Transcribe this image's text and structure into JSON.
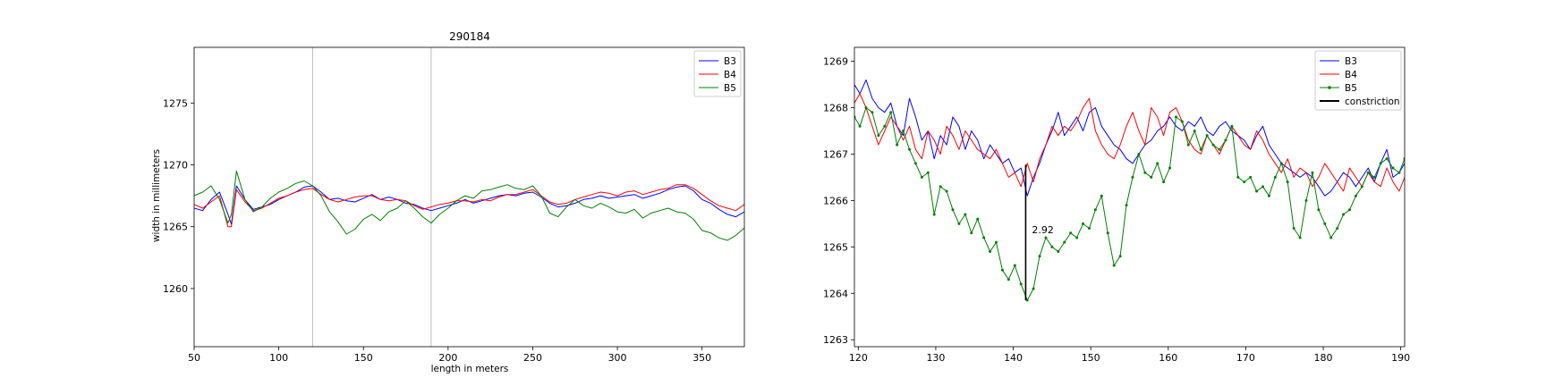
{
  "chart_data": [
    {
      "type": "line",
      "title": "290184",
      "xlabel": "length in meters",
      "ylabel": "width in millimeters",
      "xlim": [
        50,
        375
      ],
      "ylim": [
        1255.3,
        1279.5
      ],
      "xticks": [
        50,
        100,
        150,
        200,
        250,
        300,
        350
      ],
      "yticks": [
        1260,
        1265,
        1270,
        1275
      ],
      "vlines": [
        120,
        190
      ],
      "vline_color": "#bbbbbb",
      "grid": false,
      "legend": "top-right",
      "series": [
        {
          "name": "B3",
          "color": "#0000ff",
          "x": [
            50,
            55,
            60,
            65,
            70,
            72,
            75,
            80,
            85,
            90,
            95,
            100,
            105,
            110,
            115,
            120,
            125,
            130,
            135,
            140,
            145,
            150,
            155,
            160,
            165,
            170,
            175,
            180,
            185,
            190,
            195,
            200,
            205,
            210,
            215,
            220,
            225,
            230,
            235,
            240,
            245,
            250,
            255,
            260,
            265,
            270,
            275,
            280,
            285,
            290,
            295,
            300,
            305,
            310,
            315,
            320,
            325,
            330,
            335,
            340,
            345,
            350,
            355,
            360,
            365,
            370,
            375
          ],
          "y": [
            1266.5,
            1266.3,
            1267.2,
            1267.8,
            1266,
            1265.2,
            1268.3,
            1267.2,
            1266.4,
            1266.6,
            1266.8,
            1267.2,
            1267.5,
            1267.8,
            1268.2,
            1268.3,
            1267.8,
            1267.2,
            1267.3,
            1267.1,
            1267,
            1267.3,
            1267.6,
            1267.2,
            1267.4,
            1267.2,
            1266.9,
            1266.8,
            1266.5,
            1266.3,
            1266.5,
            1266.7,
            1266.9,
            1267.2,
            1266.9,
            1267.1,
            1267.3,
            1267.5,
            1267.6,
            1267.5,
            1267.7,
            1267.8,
            1267.4,
            1266.9,
            1266.6,
            1266.7,
            1266.9,
            1267.2,
            1267.3,
            1267.5,
            1267.3,
            1267.4,
            1267.5,
            1267.6,
            1267.3,
            1267.5,
            1267.7,
            1268,
            1268.2,
            1268.3,
            1267.9,
            1267.2,
            1266.9,
            1266.4,
            1266,
            1265.8,
            1266.2
          ]
        },
        {
          "name": "B4",
          "color": "#ff0000",
          "x": [
            50,
            55,
            60,
            65,
            70,
            72,
            75,
            80,
            85,
            90,
            95,
            100,
            105,
            110,
            115,
            120,
            125,
            130,
            135,
            140,
            145,
            150,
            155,
            160,
            165,
            170,
            175,
            180,
            185,
            190,
            195,
            200,
            205,
            210,
            215,
            220,
            225,
            230,
            235,
            240,
            245,
            250,
            255,
            260,
            265,
            270,
            275,
            280,
            285,
            290,
            295,
            300,
            305,
            310,
            315,
            320,
            325,
            330,
            335,
            340,
            345,
            350,
            355,
            360,
            365,
            370,
            375
          ],
          "y": [
            1266.8,
            1266.5,
            1267,
            1267.5,
            1265,
            1265,
            1268,
            1267,
            1266.3,
            1266.5,
            1266.9,
            1267.3,
            1267.5,
            1267.8,
            1268,
            1268.1,
            1267.6,
            1267.2,
            1267,
            1267.2,
            1267.4,
            1267.5,
            1267.5,
            1267.2,
            1267.1,
            1267.2,
            1267.1,
            1266.7,
            1266.4,
            1266.6,
            1266.8,
            1266.9,
            1267.1,
            1267.1,
            1267,
            1267.2,
            1267.1,
            1267.4,
            1267.6,
            1267.6,
            1267.8,
            1268,
            1267.5,
            1267,
            1266.8,
            1266.9,
            1267.2,
            1267.4,
            1267.6,
            1267.8,
            1267.7,
            1267.5,
            1267.8,
            1267.9,
            1267.6,
            1267.8,
            1268,
            1268.1,
            1268.4,
            1268.4,
            1268.1,
            1267.6,
            1267.1,
            1266.7,
            1266.5,
            1266.3,
            1266.8
          ]
        },
        {
          "name": "B5",
          "color": "#008000",
          "x": [
            50,
            55,
            60,
            65,
            70,
            72,
            75,
            80,
            85,
            90,
            95,
            100,
            105,
            110,
            115,
            120,
            125,
            130,
            135,
            140,
            145,
            150,
            155,
            160,
            165,
            170,
            175,
            180,
            185,
            190,
            195,
            200,
            205,
            210,
            215,
            220,
            225,
            230,
            235,
            240,
            245,
            250,
            255,
            260,
            265,
            270,
            275,
            280,
            285,
            290,
            295,
            300,
            305,
            310,
            315,
            320,
            325,
            330,
            335,
            340,
            345,
            350,
            355,
            360,
            365,
            370,
            375
          ],
          "y": [
            1267.5,
            1267.8,
            1268.3,
            1267.2,
            1265.3,
            1266,
            1269.5,
            1267.2,
            1266.2,
            1266.6,
            1267.3,
            1267.8,
            1268.1,
            1268.5,
            1268.7,
            1268.3,
            1267.5,
            1266.2,
            1265.4,
            1264.4,
            1264.8,
            1265.6,
            1266,
            1265.5,
            1266.2,
            1266.5,
            1267.1,
            1266.5,
            1265.8,
            1265.3,
            1266,
            1266.5,
            1267.1,
            1267.5,
            1267.3,
            1267.9,
            1268,
            1268.2,
            1268.4,
            1268.1,
            1268,
            1268.3,
            1267.5,
            1266.1,
            1265.8,
            1266.6,
            1267.2,
            1266.7,
            1266.5,
            1266.9,
            1266.6,
            1266.2,
            1266.1,
            1266.4,
            1265.7,
            1266.1,
            1266.3,
            1266.5,
            1266.2,
            1266.1,
            1265.6,
            1264.7,
            1264.5,
            1264.1,
            1263.9,
            1264.3,
            1264.9
          ]
        }
      ]
    },
    {
      "type": "line",
      "xlim": [
        119.5,
        190.5
      ],
      "ylim": [
        1262.85,
        1269.3
      ],
      "xticks": [
        120,
        130,
        140,
        150,
        160,
        170,
        180,
        190
      ],
      "yticks": [
        1263,
        1264,
        1265,
        1266,
        1267,
        1268,
        1269
      ],
      "grid": false,
      "legend": "top-right",
      "constriction": {
        "x": 141.6,
        "y_from": 1263.85,
        "y_to": 1266.77
      },
      "annotation": {
        "text": "2.92",
        "x": 142.4,
        "y": 1265.3
      },
      "series": [
        {
          "name": "B3",
          "color": "#0000ff",
          "marker": false,
          "x": [
            119.5,
            120.2,
            121,
            121.8,
            122.6,
            123.4,
            124.2,
            125,
            125.8,
            126.6,
            127.4,
            128.2,
            129,
            129.8,
            130.6,
            131.4,
            132.2,
            133,
            133.8,
            134.6,
            135.4,
            136.2,
            137,
            137.8,
            138.6,
            139.4,
            140.2,
            141,
            141.8,
            142.6,
            143.4,
            144.2,
            145,
            145.8,
            146.6,
            147.4,
            148.2,
            149,
            149.8,
            150.6,
            151.4,
            152.2,
            153,
            153.8,
            154.6,
            155.4,
            156.2,
            157,
            157.8,
            158.6,
            159.4,
            160.2,
            161,
            161.8,
            162.6,
            163.4,
            164.2,
            165,
            165.8,
            166.6,
            167.4,
            168.2,
            169,
            169.8,
            170.6,
            171.4,
            172.2,
            173,
            173.8,
            174.6,
            175.4,
            176.2,
            177,
            177.8,
            178.6,
            179.4,
            180.2,
            181,
            181.8,
            182.6,
            183.4,
            184.2,
            185,
            185.8,
            186.6,
            187.4,
            188.2,
            189,
            189.8,
            190.5
          ],
          "y": [
            1268.5,
            1268.3,
            1268.6,
            1268.2,
            1268,
            1267.9,
            1268.1,
            1267.6,
            1267.4,
            1268.2,
            1267.8,
            1267.3,
            1267.5,
            1266.9,
            1267.4,
            1267.2,
            1267.8,
            1267.6,
            1267.1,
            1267.5,
            1267.3,
            1266.9,
            1267.2,
            1267,
            1266.8,
            1266.9,
            1266.6,
            1266.7,
            1266.1,
            1266.5,
            1266.8,
            1267.2,
            1267.5,
            1267.9,
            1267.4,
            1267.6,
            1267.8,
            1267.5,
            1267.9,
            1268,
            1267.6,
            1267.4,
            1267.2,
            1267.1,
            1266.9,
            1266.8,
            1267,
            1267.2,
            1267.3,
            1267.5,
            1267.6,
            1267.8,
            1267.6,
            1267.5,
            1267.7,
            1267.6,
            1267.8,
            1267.5,
            1267.4,
            1267.6,
            1267.7,
            1267.5,
            1267.4,
            1267.3,
            1267.1,
            1267.4,
            1267.6,
            1267.2,
            1267,
            1266.8,
            1266.7,
            1266.6,
            1266.5,
            1266.6,
            1266.5,
            1266.3,
            1266.1,
            1266.2,
            1266.4,
            1266.6,
            1266.5,
            1266.3,
            1266.5,
            1266.7,
            1266.4,
            1266.8,
            1267.1,
            1266.5,
            1266.6,
            1266.8
          ]
        },
        {
          "name": "B4",
          "color": "#ff0000",
          "marker": false,
          "x": [
            119.5,
            120.2,
            121,
            121.8,
            122.6,
            123.4,
            124.2,
            125,
            125.8,
            126.6,
            127.4,
            128.2,
            129,
            129.8,
            130.6,
            131.4,
            132.2,
            133,
            133.8,
            134.6,
            135.4,
            136.2,
            137,
            137.8,
            138.6,
            139.4,
            140.2,
            141,
            141.8,
            142.6,
            143.4,
            144.2,
            145,
            145.8,
            146.6,
            147.4,
            148.2,
            149,
            149.8,
            150.6,
            151.4,
            152.2,
            153,
            153.8,
            154.6,
            155.4,
            156.2,
            157,
            157.8,
            158.6,
            159.4,
            160.2,
            161,
            161.8,
            162.6,
            163.4,
            164.2,
            165,
            165.8,
            166.6,
            167.4,
            168.2,
            169,
            169.8,
            170.6,
            171.4,
            172.2,
            173,
            173.8,
            174.6,
            175.4,
            176.2,
            177,
            177.8,
            178.6,
            179.4,
            180.2,
            181,
            181.8,
            182.6,
            183.4,
            184.2,
            185,
            185.8,
            186.6,
            187.4,
            188.2,
            189,
            189.8,
            190.5
          ],
          "y": [
            1268.1,
            1268.3,
            1268,
            1267.6,
            1267.2,
            1267.5,
            1267.8,
            1267.6,
            1267.3,
            1267.6,
            1267.1,
            1266.9,
            1267.5,
            1267.3,
            1267,
            1267.6,
            1267.4,
            1267.1,
            1267.5,
            1267.3,
            1267.1,
            1267,
            1266.9,
            1267.1,
            1266.8,
            1266.5,
            1266.6,
            1266.3,
            1266.8,
            1266.4,
            1266.9,
            1267.2,
            1267.6,
            1267.4,
            1267.6,
            1267.5,
            1267.7,
            1268,
            1268.2,
            1267.5,
            1267.2,
            1267,
            1266.9,
            1267.2,
            1267.6,
            1267.9,
            1267.5,
            1267.2,
            1268,
            1267.8,
            1267.4,
            1267.9,
            1268,
            1267.7,
            1267.3,
            1267.1,
            1267,
            1267.4,
            1267.2,
            1267,
            1267.3,
            1267.6,
            1267.4,
            1267.2,
            1267.1,
            1267.5,
            1267.3,
            1267,
            1266.8,
            1266.6,
            1266.9,
            1266.5,
            1266.7,
            1266.6,
            1266.3,
            1266.5,
            1266.8,
            1266.6,
            1266.4,
            1266.2,
            1266.7,
            1266.5,
            1266.3,
            1266.6,
            1266.4,
            1266.3,
            1266.7,
            1266.4,
            1266.2,
            1266.5
          ]
        },
        {
          "name": "B5",
          "color": "#008000",
          "marker": true,
          "x": [
            119.5,
            120.2,
            121,
            121.8,
            122.6,
            123.4,
            124.2,
            125,
            125.8,
            126.6,
            127.4,
            128.2,
            129,
            129.8,
            130.6,
            131.4,
            132.2,
            133,
            133.8,
            134.6,
            135.4,
            136.2,
            137,
            137.8,
            138.6,
            139.4,
            140.2,
            141,
            141.8,
            142.6,
            143.4,
            144.2,
            145,
            145.8,
            146.6,
            147.4,
            148.2,
            149,
            149.8,
            150.6,
            151.4,
            152.2,
            153,
            153.8,
            154.6,
            155.4,
            156.2,
            157,
            157.8,
            158.6,
            159.4,
            160.2,
            161,
            161.8,
            162.6,
            163.4,
            164.2,
            165,
            165.8,
            166.6,
            167.4,
            168.2,
            169,
            169.8,
            170.6,
            171.4,
            172.2,
            173,
            173.8,
            174.6,
            175.4,
            176.2,
            177,
            177.8,
            178.6,
            179.4,
            180.2,
            181,
            181.8,
            182.6,
            183.4,
            184.2,
            185,
            185.8,
            186.6,
            187.4,
            188.2,
            189,
            189.8,
            190.5
          ],
          "y": [
            1267.8,
            1267.6,
            1268,
            1267.9,
            1267.4,
            1267.6,
            1267.9,
            1267.2,
            1267.5,
            1267.1,
            1266.8,
            1266.5,
            1266.6,
            1265.7,
            1266.3,
            1266.2,
            1265.8,
            1265.5,
            1265.7,
            1265.3,
            1265.6,
            1265.2,
            1264.9,
            1265.1,
            1264.5,
            1264.3,
            1264.6,
            1264.2,
            1263.85,
            1264.1,
            1264.8,
            1265.2,
            1265,
            1264.9,
            1265.1,
            1265.3,
            1265.2,
            1265.5,
            1265.4,
            1265.8,
            1266.1,
            1265.3,
            1264.6,
            1264.8,
            1265.9,
            1266.5,
            1267,
            1266.6,
            1266.5,
            1266.8,
            1266.4,
            1266.7,
            1267.8,
            1267.7,
            1267.2,
            1267.5,
            1267.1,
            1267.4,
            1267.2,
            1267.1,
            1267.3,
            1267.6,
            1266.5,
            1266.4,
            1266.5,
            1266.2,
            1266.3,
            1266.1,
            1266.5,
            1266.8,
            1266.4,
            1265.4,
            1265.2,
            1266,
            1266.6,
            1265.8,
            1265.5,
            1265.2,
            1265.4,
            1265.7,
            1265.8,
            1266.1,
            1266.3,
            1266.6,
            1266.5,
            1266.8,
            1266.9,
            1266.7,
            1266.6,
            1266.9
          ]
        }
      ]
    }
  ]
}
